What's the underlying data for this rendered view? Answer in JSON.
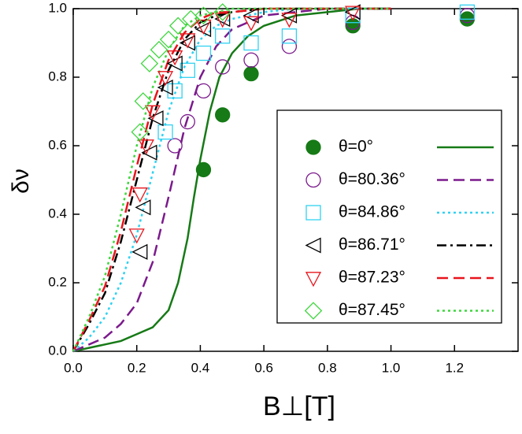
{
  "chart_data": {
    "type": "scatter",
    "xlabel": "B⊥[T]",
    "ylabel": "δν",
    "xlim": [
      0,
      1.4
    ],
    "ylim": [
      0,
      1
    ],
    "xticks": [
      {
        "value": 0,
        "label": "0.0"
      },
      0.2,
      0.4,
      0.6,
      0.8,
      {
        "value": 1,
        "label": "1.0"
      },
      1.2
    ],
    "yticks": [
      {
        "value": 0,
        "label": "0.0"
      },
      0.2,
      0.4,
      0.6,
      0.8,
      {
        "value": 1,
        "label": "1.0"
      }
    ],
    "legend": "center-right",
    "series": [
      {
        "name": "θ=0°",
        "color": "#167a16",
        "marker": "filled-circle",
        "x": [
          0.41,
          0.47,
          0.56,
          0.88,
          1.24
        ],
        "values": [
          0.53,
          0.69,
          0.81,
          0.95,
          0.97
        ],
        "fit": {
          "dash": "solid",
          "x": [
            0,
            0.05,
            0.1,
            0.15,
            0.2,
            0.25,
            0.3,
            0.33,
            0.36,
            0.38,
            0.4,
            0.43,
            0.46,
            0.5,
            0.55,
            0.6,
            0.7,
            0.8,
            0.9,
            1.0
          ],
          "values": [
            0,
            0.01,
            0.02,
            0.03,
            0.05,
            0.07,
            0.12,
            0.2,
            0.33,
            0.45,
            0.56,
            0.7,
            0.8,
            0.87,
            0.92,
            0.95,
            0.98,
            0.99,
            1.0,
            1.0
          ]
        }
      },
      {
        "name": "θ=80.36°",
        "color": "#7b1a8c",
        "marker": "circle",
        "x": [
          0.32,
          0.36,
          0.41,
          0.47,
          0.56,
          0.68,
          0.88,
          1.24
        ],
        "values": [
          0.6,
          0.67,
          0.76,
          0.83,
          0.85,
          0.89,
          0.96,
          0.98
        ],
        "fit": {
          "dash": "dashed",
          "x": [
            0,
            0.05,
            0.1,
            0.15,
            0.2,
            0.25,
            0.3,
            0.35,
            0.4,
            0.45,
            0.5,
            0.6,
            0.7,
            0.8,
            1.0
          ],
          "values": [
            0,
            0.02,
            0.04,
            0.08,
            0.14,
            0.26,
            0.45,
            0.65,
            0.8,
            0.89,
            0.94,
            0.98,
            0.99,
            1.0,
            1.0
          ]
        }
      },
      {
        "name": "θ=84.86°",
        "color": "#2fd2f2",
        "marker": "square",
        "x": [
          0.29,
          0.32,
          0.36,
          0.41,
          0.47,
          0.56,
          0.68,
          0.88,
          1.24
        ],
        "values": [
          0.64,
          0.76,
          0.82,
          0.87,
          0.92,
          0.9,
          0.92,
          0.98,
          0.99
        ],
        "fit": {
          "dash": "dotted",
          "x": [
            0,
            0.05,
            0.1,
            0.15,
            0.2,
            0.25,
            0.3,
            0.35,
            0.4,
            0.45,
            0.5,
            0.6,
            0.7,
            0.8,
            1.0
          ],
          "values": [
            0,
            0.04,
            0.1,
            0.2,
            0.34,
            0.52,
            0.7,
            0.83,
            0.91,
            0.95,
            0.97,
            0.99,
            1.0,
            1.0,
            1.0
          ]
        }
      },
      {
        "name": "θ=86.71°",
        "color": "#000000",
        "marker": "triangle-left",
        "x": [
          0.21,
          0.22,
          0.24,
          0.26,
          0.29,
          0.32,
          0.36,
          0.41,
          0.47,
          0.56,
          0.68,
          0.88
        ],
        "values": [
          0.29,
          0.42,
          0.58,
          0.68,
          0.77,
          0.84,
          0.9,
          0.94,
          0.97,
          0.98,
          0.98,
          0.99
        ],
        "fit": {
          "dash": "dash-dot",
          "x": [
            0,
            0.05,
            0.1,
            0.15,
            0.2,
            0.25,
            0.3,
            0.35,
            0.4,
            0.45,
            0.5,
            0.6,
            0.7,
            0.8,
            1.0
          ],
          "values": [
            0,
            0.08,
            0.17,
            0.32,
            0.5,
            0.68,
            0.82,
            0.91,
            0.96,
            0.98,
            0.99,
            1.0,
            1.0,
            1.0,
            1.0
          ]
        }
      },
      {
        "name": "θ=87.23°",
        "color": "#e8141b",
        "marker": "triangle-down",
        "x": [
          0.2,
          0.21,
          0.23,
          0.25,
          0.29,
          0.32,
          0.36,
          0.41,
          0.47,
          0.56,
          0.68,
          0.88
        ],
        "values": [
          0.34,
          0.46,
          0.6,
          0.7,
          0.8,
          0.86,
          0.91,
          0.95,
          0.97,
          0.96,
          0.97,
          0.99
        ],
        "fit": {
          "dash": "dashed",
          "x": [
            0,
            0.05,
            0.1,
            0.15,
            0.2,
            0.25,
            0.3,
            0.35,
            0.4,
            0.45,
            0.5,
            0.6,
            0.7,
            0.8,
            1.0
          ],
          "values": [
            0,
            0.09,
            0.19,
            0.35,
            0.54,
            0.72,
            0.85,
            0.93,
            0.97,
            0.99,
            0.99,
            1.0,
            1.0,
            1.0,
            1.0
          ]
        }
      },
      {
        "name": "θ=87.45°",
        "color": "#3fd63f",
        "marker": "diamond",
        "x": [
          0.21,
          0.22,
          0.24,
          0.27,
          0.3,
          0.33,
          0.37,
          0.41,
          0.47
        ],
        "values": [
          0.64,
          0.73,
          0.84,
          0.88,
          0.91,
          0.95,
          0.97,
          0.98,
          0.99
        ],
        "fit": {
          "dash": "dotted",
          "x": [
            0,
            0.05,
            0.1,
            0.15,
            0.2,
            0.25,
            0.3,
            0.35,
            0.4,
            0.45,
            0.5,
            0.6,
            0.7,
            0.8,
            1.0
          ],
          "values": [
            0,
            0.1,
            0.22,
            0.4,
            0.6,
            0.77,
            0.88,
            0.95,
            0.98,
            0.99,
            1.0,
            1.0,
            1.0,
            1.0,
            1.0
          ]
        }
      }
    ]
  }
}
